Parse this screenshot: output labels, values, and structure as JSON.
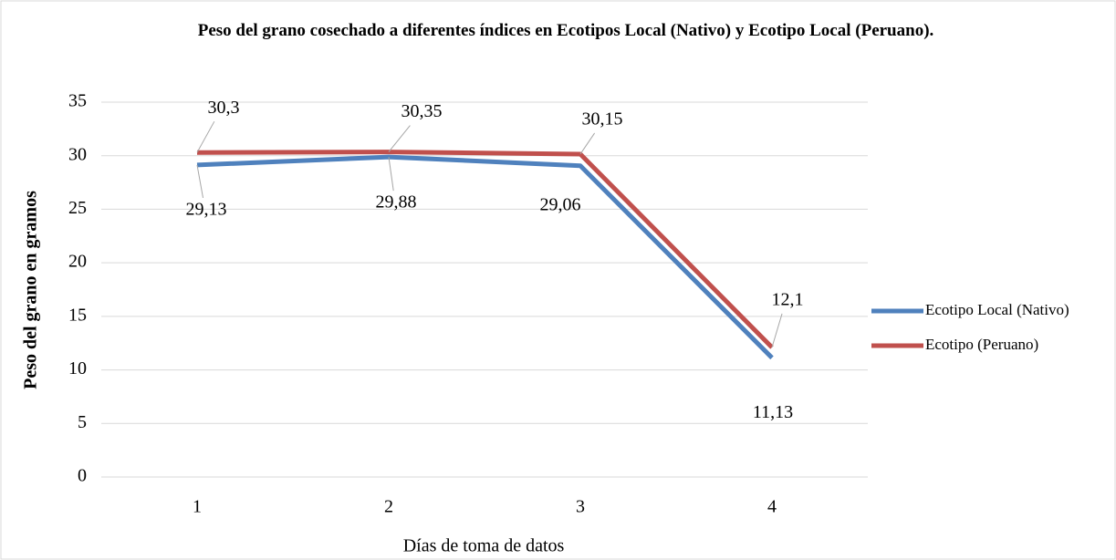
{
  "chart_data": {
    "type": "line",
    "title": "Peso del grano cosechado a diferentes índices en Ecotipos Local (Nativo) y Ecotipo Local (Peruano).",
    "x_label": "Días  de toma de datos",
    "y_label": "Peso del grano en gramos",
    "categories": [
      "1",
      "2",
      "3",
      "4"
    ],
    "series": [
      {
        "name": "Ecotipo Local (Nativo)",
        "color": "#4f81bd",
        "values": [
          29.13,
          29.88,
          29.06,
          11.13
        ],
        "value_labels": [
          "29,13",
          "29,88",
          "29,06",
          "11,13"
        ]
      },
      {
        "name": "Ecotipo (Peruano)",
        "color": "#c0504d",
        "values": [
          30.3,
          30.35,
          30.15,
          12.1
        ],
        "value_labels": [
          "30,3",
          "30,35",
          "30,15",
          "12,1"
        ]
      }
    ],
    "ylim": [
      0,
      35
    ],
    "yticks": [
      0,
      5,
      10,
      15,
      20,
      25,
      30,
      35
    ],
    "grid": true,
    "legend": "right"
  }
}
